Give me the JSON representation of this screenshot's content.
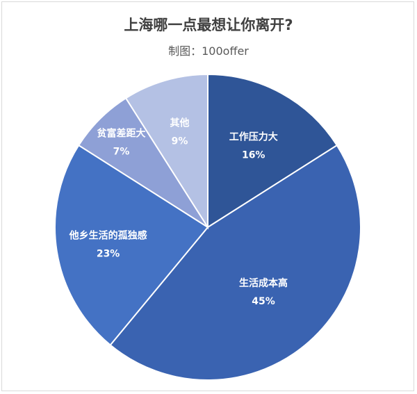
{
  "chart_data": {
    "type": "pie",
    "title": "上海哪一点最想让你离开?",
    "subtitle": "制图：100offer",
    "slices": [
      {
        "label": "工作压力大",
        "value": 16,
        "display": "16%",
        "color": "#2f5597"
      },
      {
        "label": "生活成本高",
        "value": 45,
        "display": "45%",
        "color": "#3a63b1"
      },
      {
        "label": "他乡生活的孤独感",
        "value": 23,
        "display": "23%",
        "color": "#4472c4"
      },
      {
        "label": "贫富差距大",
        "value": 7,
        "display": "7%",
        "color": "#8ea0d6"
      },
      {
        "label": "其他",
        "value": 9,
        "display": "9%",
        "color": "#b4c1e4"
      }
    ],
    "legend": "none",
    "data_labels": "inside"
  }
}
